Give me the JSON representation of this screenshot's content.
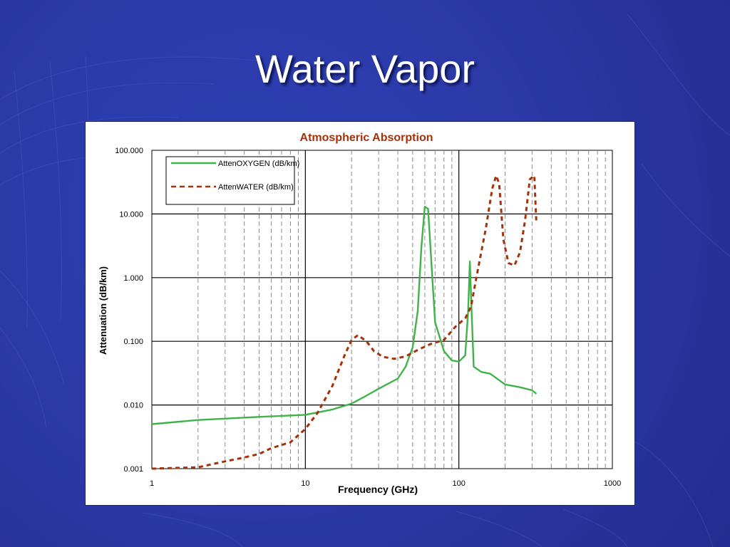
{
  "slide": {
    "title": "Water Vapor"
  },
  "colors": {
    "background": "#2c3aa8",
    "oxygen_series": "#3fb24a",
    "water_series": "#a3310a",
    "chart_title": "#a3310a"
  },
  "chart_data": {
    "type": "line",
    "title": "Atmospheric Absorption",
    "xlabel": "Frequency (GHz)",
    "ylabel": "Attenuation (dB/km)",
    "x_scale": "log",
    "y_scale": "log",
    "xlim": [
      1,
      1000
    ],
    "ylim": [
      0.001,
      100
    ],
    "grid": true,
    "legend_position": "top-left",
    "x_ticks": [
      "1",
      "10",
      "100",
      "1000"
    ],
    "y_ticks": [
      "0.001",
      "0.010",
      "0.100",
      "1.000",
      "10.000",
      "100.000"
    ],
    "series": [
      {
        "name": "AttenOXYGEN (dB/km)",
        "style": "solid",
        "color": "#3fb24a",
        "points": [
          [
            1,
            0.005
          ],
          [
            2,
            0.0058
          ],
          [
            5,
            0.0065
          ],
          [
            10,
            0.007
          ],
          [
            15,
            0.0085
          ],
          [
            20,
            0.0105
          ],
          [
            25,
            0.014
          ],
          [
            30,
            0.018
          ],
          [
            40,
            0.026
          ],
          [
            45,
            0.04
          ],
          [
            50,
            0.08
          ],
          [
            54,
            0.3
          ],
          [
            57,
            3.0
          ],
          [
            60,
            13.0
          ],
          [
            63,
            12.0
          ],
          [
            66,
            2.0
          ],
          [
            70,
            0.2
          ],
          [
            80,
            0.07
          ],
          [
            90,
            0.05
          ],
          [
            100,
            0.048
          ],
          [
            110,
            0.06
          ],
          [
            115,
            0.3
          ],
          [
            118,
            1.8
          ],
          [
            121,
            0.3
          ],
          [
            125,
            0.04
          ],
          [
            140,
            0.033
          ],
          [
            160,
            0.031
          ],
          [
            200,
            0.021
          ],
          [
            250,
            0.019
          ],
          [
            300,
            0.017
          ],
          [
            320,
            0.015
          ]
        ]
      },
      {
        "name": "AttenWATER (dB/km)",
        "style": "dashed",
        "color": "#a3310a",
        "points": [
          [
            1,
            0.001
          ],
          [
            2,
            0.00105
          ],
          [
            3,
            0.0013
          ],
          [
            4,
            0.0015
          ],
          [
            5,
            0.0017
          ],
          [
            6,
            0.0021
          ],
          [
            8,
            0.0026
          ],
          [
            10,
            0.0042
          ],
          [
            12,
            0.0075
          ],
          [
            15,
            0.02
          ],
          [
            18,
            0.06
          ],
          [
            20,
            0.105
          ],
          [
            22,
            0.125
          ],
          [
            25,
            0.1
          ],
          [
            28,
            0.07
          ],
          [
            32,
            0.057
          ],
          [
            38,
            0.053
          ],
          [
            45,
            0.058
          ],
          [
            55,
            0.075
          ],
          [
            65,
            0.09
          ],
          [
            80,
            0.105
          ],
          [
            95,
            0.17
          ],
          [
            110,
            0.23
          ],
          [
            120,
            0.35
          ],
          [
            130,
            1.0
          ],
          [
            150,
            6.0
          ],
          [
            165,
            25.0
          ],
          [
            175,
            40.0
          ],
          [
            183,
            30.0
          ],
          [
            195,
            4.0
          ],
          [
            210,
            1.7
          ],
          [
            230,
            1.55
          ],
          [
            250,
            2.5
          ],
          [
            270,
            8.0
          ],
          [
            290,
            35.0
          ],
          [
            310,
            40.0
          ],
          [
            320,
            7.0
          ]
        ]
      }
    ]
  }
}
